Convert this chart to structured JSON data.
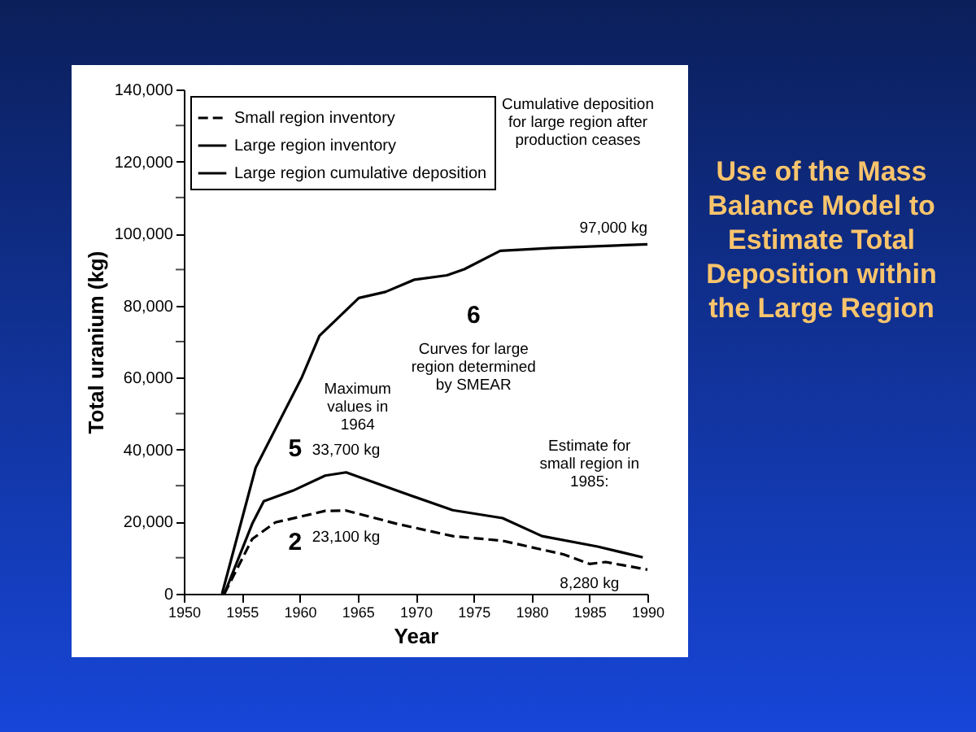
{
  "chart_data": {
    "type": "line",
    "title": "Use of the Mass Balance Model to Estimate Total Deposition within the Large Region",
    "xlabel": "Year",
    "ylabel": "Total uranium (kg)",
    "xlim": [
      1950,
      1990
    ],
    "xticks": [
      1950,
      1955,
      1960,
      1965,
      1970,
      1975,
      1980,
      1985,
      1990
    ],
    "ylim": [
      0,
      140000
    ],
    "yticks": [
      {
        "value": 0,
        "label": "0"
      },
      {
        "value": 10000,
        "label": null
      },
      {
        "value": 20000,
        "label": "20,000"
      },
      {
        "value": 30000,
        "label": null
      },
      {
        "value": 40000,
        "label": "40,000"
      },
      {
        "value": 50000,
        "label": null
      },
      {
        "value": 60000,
        "label": "60,000"
      },
      {
        "value": 70000,
        "label": null
      },
      {
        "value": 80000,
        "label": "80,000"
      },
      {
        "value": 90000,
        "label": null
      },
      {
        "value": 100000,
        "label": "100,000"
      },
      {
        "value": 110000,
        "label": null
      },
      {
        "value": 120000,
        "label": "120,000"
      },
      {
        "value": 130000,
        "label": null
      },
      {
        "value": 140000,
        "label": "140,000"
      }
    ],
    "legend": "top left",
    "grid": false,
    "marker": "none",
    "series": [
      {
        "name": "Small region inventory",
        "color": "#000000",
        "line_style": "dashed",
        "x": [
          1953.5,
          1955.9,
          1957.9,
          1962.2,
          1964,
          1968.4,
          1973.2,
          1977.5,
          1982.8,
          1985,
          1986.4,
          1990
        ],
        "values": [
          0,
          15200,
          19800,
          23000,
          23100,
          19400,
          16000,
          14700,
          10900,
          8280,
          8800,
          6700
        ]
      },
      {
        "name": "Large region inventory",
        "color": "#000000",
        "line_style": "solid",
        "x": [
          1953.5,
          1955.9,
          1956.9,
          1959.4,
          1962.2,
          1964,
          1968.4,
          1973.2,
          1977.5,
          1980.9,
          1985.7,
          1989.6
        ],
        "values": [
          0,
          19400,
          25700,
          28600,
          32800,
          33700,
          28600,
          23200,
          21000,
          16000,
          13100,
          10100
        ]
      },
      {
        "name": "Large region cumulative deposition",
        "color": "#000000",
        "line_style": "solid",
        "x": [
          1953.3,
          1956.2,
          1960.2,
          1961.7,
          1965.1,
          1967.4,
          1969.9,
          1972.7,
          1974.2,
          1977.3,
          1981.8,
          1990
        ],
        "values": [
          0,
          35000,
          60200,
          71600,
          82100,
          83800,
          87200,
          88400,
          90100,
          95200,
          96000,
          97000
        ]
      }
    ],
    "annotations": [
      "Cumulative deposition for large region after production ceases",
      {
        "text": "97,000 kg",
        "x": 1990,
        "y": 97000
      },
      "6",
      "Curves for large region determined by SMEAR",
      "Maximum values in 1964",
      "5",
      {
        "text": "33,700 kg",
        "x": 1964,
        "y": 33700
      },
      "2",
      {
        "text": "23,100 kg",
        "x": 1964,
        "y": 23100
      },
      "Estimate for small region in 1985:",
      {
        "text": "8,280 kg",
        "x": 1985,
        "y": 8280
      }
    ]
  }
}
